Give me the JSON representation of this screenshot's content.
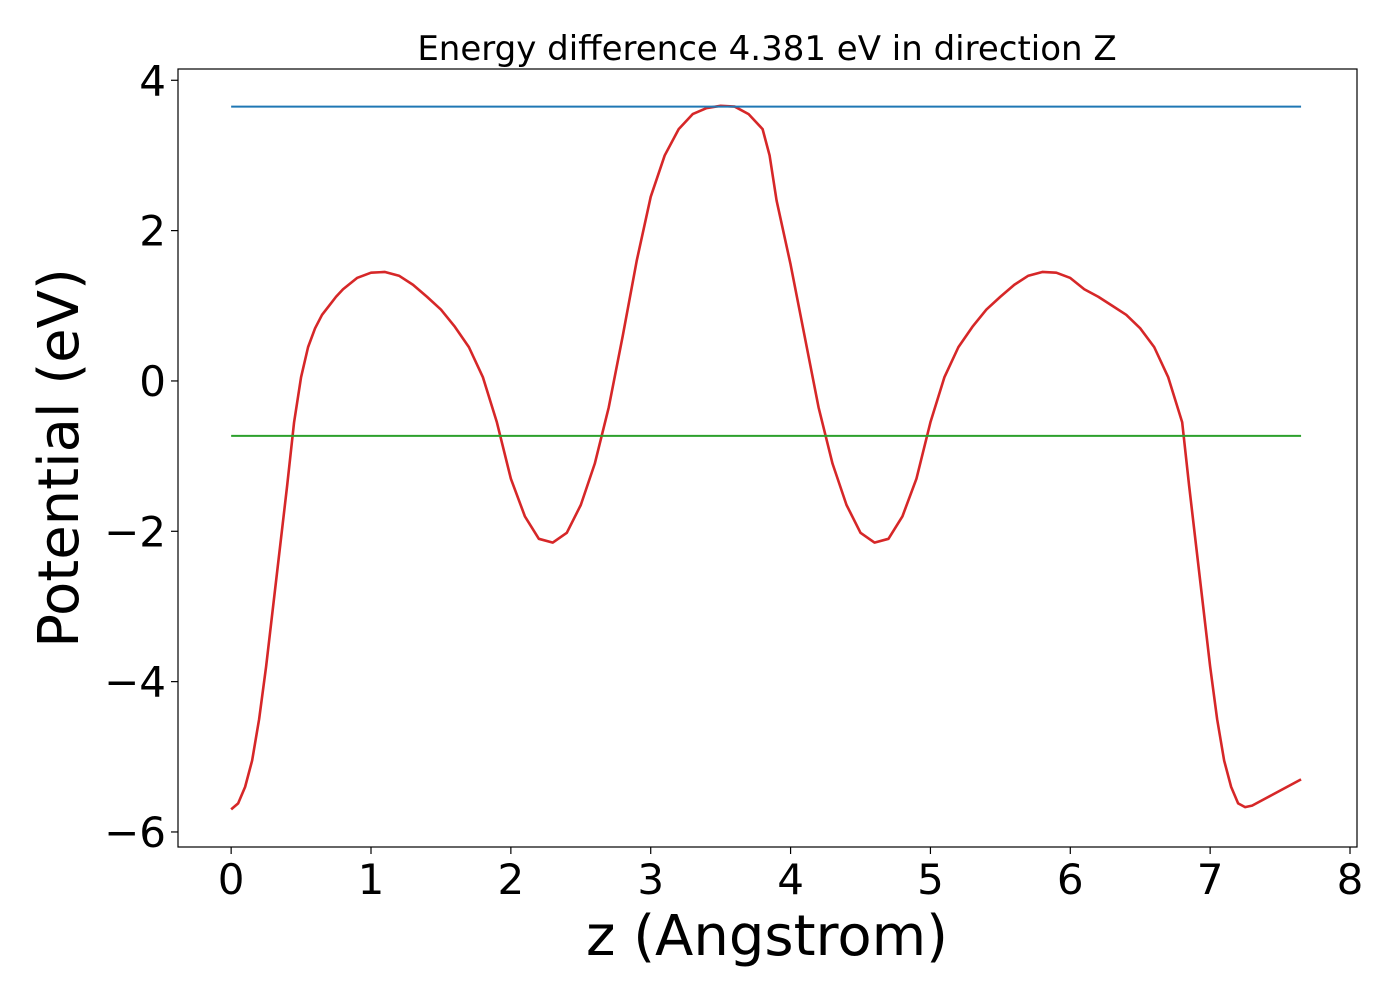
{
  "chart_data": {
    "type": "line",
    "title": "Energy difference 4.381 eV in direction Z",
    "xlabel": "z (Angstrom)",
    "ylabel": "Potential (eV)",
    "xlim": [
      -0.38,
      8.05
    ],
    "ylim": [
      -6.2,
      4.15
    ],
    "xticks": [
      0,
      1,
      2,
      3,
      4,
      5,
      6,
      7,
      8
    ],
    "yticks": [
      -6,
      -4,
      -2,
      0,
      2,
      4
    ],
    "ytick_labels": [
      "−6",
      "−4",
      "−2",
      "0",
      "2",
      "4"
    ],
    "grid": false,
    "series": [
      {
        "color": "#d62728",
        "style": "solid",
        "x": [
          0.0,
          0.05,
          0.1,
          0.15,
          0.2,
          0.25,
          0.3,
          0.35,
          0.4,
          0.45,
          0.5,
          0.55,
          0.6,
          0.65,
          0.7,
          0.75,
          0.8,
          0.9,
          1.0,
          1.1,
          1.2,
          1.3,
          1.4,
          1.5,
          1.6,
          1.7,
          1.8,
          1.9,
          2.0,
          2.1,
          2.2,
          2.3,
          2.4,
          2.5,
          2.6,
          2.7,
          2.8,
          2.9,
          3.0,
          3.1,
          3.2,
          3.3,
          3.4,
          3.5,
          3.6,
          3.7,
          3.8,
          3.85,
          3.9,
          4.0,
          4.1,
          4.2,
          4.3,
          4.4,
          4.5,
          4.6,
          4.7,
          4.8,
          4.9,
          5.0,
          5.1,
          5.2,
          5.3,
          5.4,
          5.5,
          5.6,
          5.7,
          5.8,
          5.9,
          6.0,
          6.1,
          6.2,
          6.3,
          6.4,
          6.5,
          6.6,
          6.7,
          6.8,
          6.85,
          6.9,
          6.95,
          7.0,
          7.05,
          7.1,
          7.15,
          7.2,
          7.25,
          7.3,
          7.35,
          7.4,
          7.45,
          7.5,
          7.55,
          7.6,
          7.65
        ],
        "y": [
          -5.7,
          -5.62,
          -5.4,
          -5.05,
          -4.5,
          -3.8,
          -3.0,
          -2.2,
          -1.4,
          -0.55,
          0.05,
          0.45,
          0.7,
          0.88,
          1.0,
          1.12,
          1.22,
          1.37,
          1.44,
          1.45,
          1.4,
          1.28,
          1.12,
          0.95,
          0.72,
          0.45,
          0.05,
          -0.55,
          -1.3,
          -1.8,
          -2.1,
          -2.15,
          -2.02,
          -1.65,
          -1.1,
          -0.35,
          0.6,
          1.6,
          2.45,
          3.0,
          3.35,
          3.55,
          3.63,
          3.66,
          3.65,
          3.55,
          3.35,
          3.0,
          2.4,
          1.55,
          0.6,
          -0.35,
          -1.1,
          -1.65,
          -2.02,
          -2.15,
          -2.1,
          -1.8,
          -1.3,
          -0.55,
          0.05,
          0.45,
          0.72,
          0.95,
          1.12,
          1.28,
          1.4,
          1.45,
          1.44,
          1.37,
          1.22,
          1.12,
          1.0,
          0.88,
          0.7,
          0.45,
          0.05,
          -0.55,
          -1.4,
          -2.2,
          -3.0,
          -3.8,
          -4.5,
          -5.05,
          -5.4,
          -5.62,
          -5.67,
          -5.65,
          -5.6,
          -5.55,
          -5.5,
          -5.45,
          -5.4,
          -5.35,
          -5.3
        ]
      },
      {
        "color": "#1f77b4",
        "style": "solid",
        "x": [
          0.0,
          7.65
        ],
        "y": [
          3.65,
          3.65
        ]
      },
      {
        "color": "#2ca02c",
        "style": "solid",
        "x": [
          0.0,
          7.65
        ],
        "y": [
          -0.73,
          -0.73
        ]
      }
    ]
  }
}
